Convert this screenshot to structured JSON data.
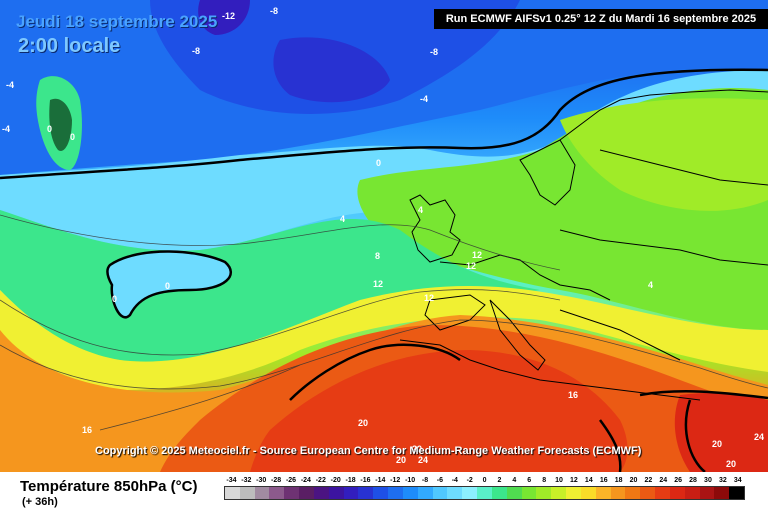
{
  "header": {
    "date": "Jeudi 18 septembre 2025",
    "time": "2:00 locale",
    "run": "Run ECMWF AIFSv1 0.25° 12 Z du Mardi 16 septembre 2025"
  },
  "copyright": "Copyright © 2025 Meteociel.fr - Source European Centre for Medium-Range Weather Forecasts (ECMWF)",
  "legend": {
    "title": "Température 850hPa (°C)",
    "subtitle": "(+ 36h)",
    "values": [
      "-34",
      "-32",
      "-30",
      "-28",
      "-26",
      "-24",
      "-22",
      "-20",
      "-18",
      "-16",
      "-14",
      "-12",
      "-10",
      "-8",
      "-6",
      "-4",
      "-2",
      "0",
      "2",
      "4",
      "6",
      "8",
      "10",
      "12",
      "14",
      "16",
      "18",
      "20",
      "22",
      "24",
      "26",
      "28",
      "30",
      "32",
      "34"
    ],
    "colors": [
      "#d8d8d8",
      "#bdbdbd",
      "#a18ba1",
      "#8c5a8c",
      "#6e3273",
      "#5a1e64",
      "#4b1482",
      "#3c14a0",
      "#321ebe",
      "#2832d2",
      "#1e50e6",
      "#1e6ef0",
      "#1e8cfa",
      "#32aaff",
      "#50c8ff",
      "#6edcff",
      "#8cf0ff",
      "#5af0c8",
      "#3ce68c",
      "#50dc50",
      "#78e632",
      "#a0eb28",
      "#c8f028",
      "#f0f032",
      "#fadc28",
      "#fab428",
      "#f5961e",
      "#f07814",
      "#eb5a14",
      "#e63c14",
      "#dc2814",
      "#c81e14",
      "#aa1414",
      "#8c0a0a",
      "#000000"
    ]
  },
  "map": {
    "contour_labels": [
      "-12",
      "-8",
      "-8",
      "-8",
      "-4",
      "-4",
      "-4",
      "0",
      "0",
      "0",
      "0",
      "0",
      "4",
      "4",
      "8",
      "12",
      "12",
      "12",
      "12",
      "4",
      "16",
      "16",
      "20",
      "20",
      "20",
      "24",
      "20",
      "24",
      "20"
    ]
  }
}
